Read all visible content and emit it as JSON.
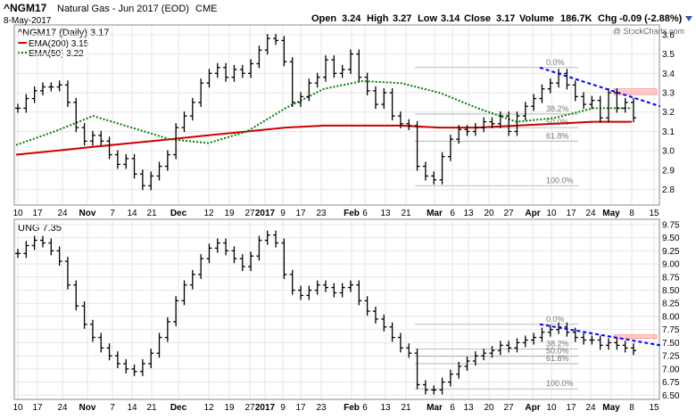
{
  "header": {
    "symbol": "^NGM17",
    "name": "Natural Gas - Jun 2017 (EOD)",
    "exchange": "CME",
    "date": "8-May-2017",
    "open_label": "Open",
    "open": "3.24",
    "high_label": "High",
    "high": "3.27",
    "low_label": "Low",
    "low": "3.14",
    "close_label": "Close",
    "close": "3.17",
    "volume_label": "Volume",
    "volume": "186.7K",
    "chg_label": "Chg",
    "chg": "-0.09 (-2.88%)",
    "watermark": "@ StockCharts.com"
  },
  "colors": {
    "ema200": "#cc0000",
    "ema50": "#008000",
    "trendline": "#0000ff",
    "zone": "#ffaaaa",
    "fib": "#aaaaaa",
    "bars": "#000000"
  },
  "chart_data": [
    {
      "type": "ohlc",
      "title": "^NGM17 (Daily) 3.17",
      "legend": [
        {
          "name": "EMA(200) 3.15",
          "color": "#cc0000"
        },
        {
          "name": "EMA(50) 3.22",
          "color": "#008000"
        }
      ],
      "legend_position": "top-left",
      "grid": true,
      "ylim": [
        2.72,
        3.65
      ],
      "yticks": [
        "3.6",
        "3.5",
        "3.4",
        "3.3",
        "3.2",
        "3.1",
        "3.0",
        "2.9",
        "2.8"
      ],
      "ytick_values": [
        3.6,
        3.5,
        3.4,
        3.3,
        3.2,
        3.1,
        3.0,
        2.9,
        2.8
      ],
      "xticks": [
        "10",
        "17",
        "24",
        "Nov",
        "7",
        "14",
        "21",
        "Dec",
        "12",
        "19",
        "27",
        "2017",
        "9",
        "17",
        "23",
        "Feb",
        "6",
        "13",
        "21",
        "Mar",
        "6",
        "13",
        "20",
        "27",
        "Apr",
        "10",
        "17",
        "24",
        "May",
        "8",
        "15"
      ],
      "bold_xticks": [
        "Nov",
        "Dec",
        "2017",
        "Feb",
        "Mar",
        "Apr",
        "May"
      ],
      "close_series": [
        3.22,
        3.27,
        3.31,
        3.33,
        3.33,
        3.34,
        3.25,
        3.12,
        3.05,
        3.08,
        3.05,
        2.98,
        2.93,
        2.96,
        2.88,
        2.82,
        2.87,
        2.92,
        2.98,
        3.12,
        3.18,
        3.25,
        3.35,
        3.4,
        3.43,
        3.38,
        3.42,
        3.4,
        3.45,
        3.52,
        3.58,
        3.57,
        3.46,
        3.25,
        3.28,
        3.35,
        3.38,
        3.47,
        3.4,
        3.42,
        3.5,
        3.38,
        3.31,
        3.24,
        3.3,
        3.18,
        3.14,
        3.13,
        2.92,
        2.87,
        2.85,
        2.97,
        3.06,
        3.11,
        3.1,
        3.12,
        3.15,
        3.14,
        3.18,
        3.1,
        3.18,
        3.23,
        3.27,
        3.32,
        3.35,
        3.4,
        3.34,
        3.28,
        3.24,
        3.26,
        3.17,
        3.3,
        3.22,
        3.25,
        3.17
      ],
      "ema200": [
        2.98,
        3.0,
        3.02,
        3.04,
        3.06,
        3.08,
        3.1,
        3.12,
        3.13,
        3.13,
        3.13,
        3.12,
        3.12,
        3.13,
        3.14,
        3.15,
        3.15
      ],
      "ema50": [
        3.03,
        3.1,
        3.18,
        3.12,
        3.06,
        3.04,
        3.1,
        3.22,
        3.32,
        3.36,
        3.35,
        3.3,
        3.22,
        3.15,
        3.17,
        3.22,
        3.22
      ],
      "fibonacci": {
        "levels": [
          "0.0%",
          "38.2%",
          "50.0%",
          "61.8%",
          "100.0%"
        ],
        "values": [
          3.43,
          3.19,
          3.12,
          3.05,
          2.82
        ]
      },
      "resistance_zone": [
        3.29,
        3.32
      ]
    },
    {
      "type": "ohlc",
      "title": "UNG 7.35",
      "grid": true,
      "ylim": [
        6.42,
        9.85
      ],
      "yticks": [
        "9.75",
        "9.50",
        "9.25",
        "9.00",
        "8.75",
        "8.50",
        "8.25",
        "8.00",
        "7.75",
        "7.50",
        "7.25",
        "7.00",
        "6.75",
        "6.50"
      ],
      "ytick_values": [
        9.75,
        9.5,
        9.25,
        9.0,
        8.75,
        8.5,
        8.25,
        8.0,
        7.75,
        7.5,
        7.25,
        7.0,
        6.75,
        6.5
      ],
      "xticks": [
        "10",
        "17",
        "24",
        "Nov",
        "7",
        "14",
        "21",
        "Dec",
        "12",
        "19",
        "27",
        "2017",
        "9",
        "17",
        "23",
        "Feb",
        "6",
        "13",
        "21",
        "Mar",
        "6",
        "13",
        "20",
        "27",
        "Apr",
        "10",
        "17",
        "24",
        "May",
        "8",
        "15"
      ],
      "bold_xticks": [
        "Nov",
        "Dec",
        "2017",
        "Feb",
        "Mar",
        "Apr",
        "May"
      ],
      "close_series": [
        9.2,
        9.35,
        9.45,
        9.4,
        9.25,
        9.05,
        8.6,
        8.2,
        7.85,
        7.6,
        7.4,
        7.25,
        7.1,
        7.0,
        6.95,
        7.1,
        7.3,
        7.6,
        7.9,
        8.3,
        8.6,
        8.8,
        9.1,
        9.3,
        9.4,
        9.25,
        9.1,
        8.95,
        9.15,
        9.45,
        9.55,
        9.4,
        8.8,
        8.5,
        8.4,
        8.5,
        8.6,
        8.55,
        8.45,
        8.55,
        8.6,
        8.3,
        8.1,
        7.95,
        7.8,
        7.6,
        7.4,
        7.3,
        6.7,
        6.6,
        6.6,
        6.75,
        6.9,
        7.05,
        7.15,
        7.25,
        7.3,
        7.35,
        7.45,
        7.4,
        7.5,
        7.55,
        7.6,
        7.7,
        7.75,
        7.8,
        7.7,
        7.6,
        7.55,
        7.55,
        7.45,
        7.5,
        7.45,
        7.4,
        7.35
      ],
      "fibonacci": {
        "levels": [
          "0.0%",
          "38.2%",
          "50.0%",
          "61.8%",
          "100.0%"
        ],
        "values": [
          7.85,
          7.38,
          7.24,
          7.1,
          6.62
        ]
      },
      "resistance_zone": [
        7.58,
        7.65
      ]
    }
  ]
}
